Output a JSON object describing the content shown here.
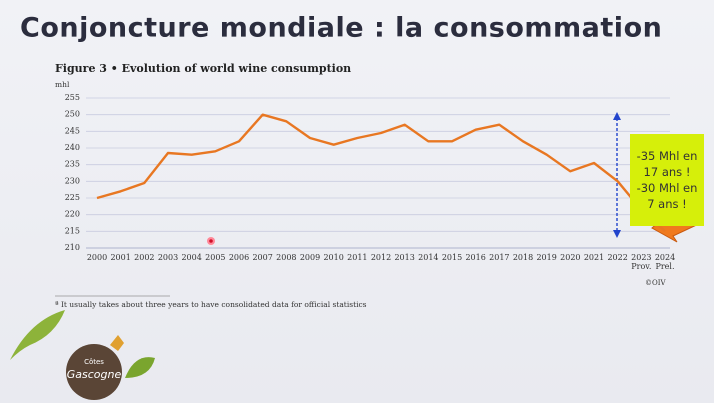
{
  "slide_title": "Conjoncture mondiale : la consommation",
  "chart_data": {
    "type": "line",
    "title": "Figure 3 • Evolution of world wine consumption",
    "y_label": "mhl",
    "categories": [
      "2000",
      "2001",
      "2002",
      "2003",
      "2004",
      "2005",
      "2006",
      "2007",
      "2008",
      "2009",
      "2010",
      "2011",
      "2012",
      "2013",
      "2014",
      "2015",
      "2016",
      "2017",
      "2018",
      "2019",
      "2020",
      "2021",
      "2022",
      "2023 Prov.",
      "2024 Prel."
    ],
    "series": [
      {
        "color": "#e87722",
        "values": [
          225,
          227,
          229.5,
          238.5,
          238,
          239,
          242,
          250,
          248,
          243,
          241,
          243,
          244.5,
          247,
          242,
          242,
          245.5,
          247,
          242,
          238,
          233,
          235.5,
          230,
          221.5,
          215
        ]
      }
    ],
    "ylim": [
      210,
      255
    ],
    "yticks": [
      210,
      215,
      220,
      225,
      230,
      235,
      240,
      245,
      250,
      255
    ],
    "grid": true,
    "annotations": [
      "-35 Mhl en 17 ans !",
      "-30 Mhl en 7 ans !"
    ],
    "source": "©OIV",
    "footnote": "ª It usually takes about three years to have consolidated data for official statistics"
  },
  "logo": {
    "top": "Côtes",
    "name": "Gascogne"
  }
}
